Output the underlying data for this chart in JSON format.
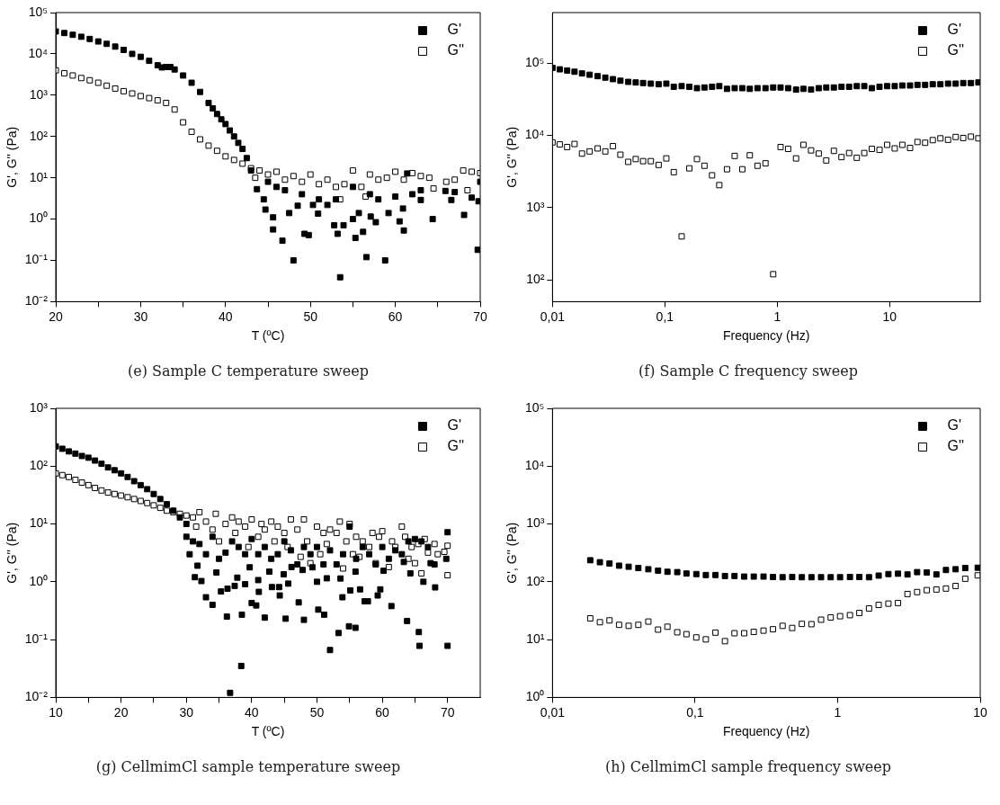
{
  "chart_data": [
    {
      "type": "scatter",
      "title": "(e) Sample C temperature sweep",
      "xlabel": "T (ºC)",
      "ylabel": "G', G'' (Pa)",
      "log": "y",
      "legend": "top right",
      "marker": "square",
      "grid": false,
      "xlim": [
        20,
        70
      ],
      "xticks": [
        20,
        {
          "value": 25,
          "label": null
        },
        30,
        {
          "value": 35,
          "label": null
        },
        40,
        {
          "value": 45,
          "label": null
        },
        50,
        {
          "value": 55,
          "label": null
        },
        60,
        {
          "value": 65,
          "label": null
        },
        70
      ],
      "ylim": [
        0.01,
        100000
      ],
      "yticks": [
        {
          "value": 0.01,
          "label": "10⁻²"
        },
        {
          "value": 0.1,
          "label": "10⁻¹"
        },
        {
          "value": 1,
          "label": "10⁰"
        },
        {
          "value": 10,
          "label": "10¹"
        },
        {
          "value": 100,
          "label": "10²"
        },
        {
          "value": 1000,
          "label": "10³"
        },
        {
          "value": 10000,
          "label": "10⁴"
        },
        {
          "value": 100000,
          "label": "10⁵"
        }
      ],
      "series": [
        {
          "name": "G'",
          "color": "#000000",
          "x": [
            20,
            21,
            22,
            23,
            24,
            25,
            26,
            27,
            28,
            29,
            30,
            31,
            32,
            32.5,
            33,
            33.5,
            34,
            35,
            36,
            37,
            38,
            38.5,
            39,
            39.5,
            40,
            40.5,
            41,
            41.5,
            42,
            42.5,
            43,
            43.7,
            44.5,
            44.7,
            45,
            45.6,
            45.6,
            46,
            46.7,
            47,
            47.5,
            48,
            48.5,
            49,
            49.3,
            49.8,
            50.3,
            50.9,
            51,
            52,
            52.8,
            53,
            53.2,
            53.5,
            53.9,
            55,
            55,
            55.3,
            55.7,
            56.2,
            56.6,
            57,
            57.1,
            57.7,
            58,
            58.8,
            59.2,
            60,
            60.5,
            60.9,
            61,
            61.4,
            62,
            63,
            63,
            64.4,
            65.9,
            66.6,
            67,
            68.1,
            69,
            69.7,
            69.8,
            70
          ],
          "values": [
            35000,
            32000,
            29000,
            26000,
            23000,
            20000,
            17500,
            15000,
            12500,
            10000,
            8500,
            6800,
            5300,
            4700,
            4800,
            4800,
            4200,
            3000,
            2000,
            1200,
            650,
            480,
            350,
            260,
            200,
            140,
            100,
            70,
            50,
            30,
            15,
            5.3,
            3,
            1.7,
            8,
            0.56,
            1.1,
            6,
            0.3,
            5,
            1.4,
            0.1,
            2.1,
            4,
            0.44,
            0.41,
            2.2,
            1.35,
            3,
            2.2,
            0.71,
            3,
            0.44,
            0.039,
            0.71,
            1,
            6,
            0.35,
            1.4,
            0.49,
            0.12,
            4,
            1.15,
            0.84,
            3,
            0.1,
            1.4,
            3.5,
            0.88,
            1.8,
            0.53,
            12.7,
            4,
            2.9,
            5,
            1,
            4.8,
            2.9,
            4.5,
            1.26,
            3.3,
            0.18,
            2.7,
            8
          ]
        },
        {
          "name": "G''",
          "color": "#ffffff",
          "x": [
            20,
            21,
            22,
            23,
            24,
            25,
            26,
            27,
            28,
            29,
            30,
            31,
            32,
            33,
            34,
            35,
            36,
            37,
            38,
            39,
            40,
            41,
            42,
            43,
            43.5,
            44,
            45,
            46,
            47,
            48,
            49,
            50,
            51,
            52,
            53,
            53.5,
            54,
            55,
            56,
            56.5,
            57,
            58,
            59,
            60,
            61,
            62,
            63,
            64,
            64.5,
            66,
            67,
            68,
            68.5,
            69,
            70
          ],
          "values": [
            4000,
            3400,
            3000,
            2600,
            2300,
            2000,
            1700,
            1450,
            1250,
            1100,
            950,
            850,
            750,
            650,
            450,
            220,
            130,
            85,
            60,
            45,
            33,
            27,
            22,
            17,
            10,
            15,
            12,
            14,
            9,
            11,
            8,
            12,
            7,
            9,
            6,
            3,
            7,
            15,
            6,
            3.5,
            12,
            9,
            10,
            14,
            9,
            13,
            11,
            10,
            5.5,
            8,
            9,
            15,
            5,
            14,
            13
          ]
        }
      ]
    },
    {
      "type": "scatter",
      "title": "(f) Sample C frequency sweep",
      "xlabel": "Frequency (Hz)",
      "ylabel": "G', G'' (Pa)",
      "log": "xy",
      "legend": "top right",
      "marker": "square",
      "grid": false,
      "xlim": [
        0.01,
        64
      ],
      "xticks": [
        {
          "value": 0.01,
          "label": "0,01"
        },
        {
          "value": 0.1,
          "label": "0,1"
        },
        1,
        10
      ],
      "ylim": [
        50,
        500000
      ],
      "yticks": [
        {
          "value": 100,
          "label": "10²"
        },
        {
          "value": 1000,
          "label": "10³"
        },
        {
          "value": 10000,
          "label": "10⁴"
        },
        {
          "value": 100000,
          "label": "10⁵"
        }
      ],
      "series": [
        {
          "name": "G'",
          "color": "#000000",
          "x": [
            0.01,
            0.0116,
            0.0135,
            0.0157,
            0.0183,
            0.0214,
            0.0252,
            0.0295,
            0.0345,
            0.0402,
            0.0472,
            0.055,
            0.064,
            0.075,
            0.088,
            0.103,
            0.12,
            0.141,
            0.165,
            0.193,
            0.225,
            0.263,
            0.305,
            0.357,
            0.418,
            0.489,
            0.57,
            0.667,
            0.786,
            0.92,
            1.07,
            1.25,
            1.47,
            1.71,
            2.0,
            2.34,
            2.73,
            3.19,
            3.73,
            4.36,
            5.1,
            5.95,
            6.95,
            8.13,
            9.5,
            11.1,
            12.97,
            15.2,
            17.7,
            20.7,
            24.2,
            28.3,
            33.1,
            38.7,
            45.2,
            52.9,
            61.6
          ],
          "values": [
            86000,
            82000,
            79000,
            76000,
            72000,
            69000,
            66000,
            63000,
            60000,
            57000,
            55000,
            54000,
            53000,
            52000,
            51000,
            52000,
            47000,
            48000,
            47000,
            45000,
            46000,
            47000,
            48000,
            44000,
            45000,
            45000,
            44000,
            45000,
            45000,
            46000,
            46000,
            45000,
            43000,
            44000,
            43000,
            45000,
            46000,
            46000,
            47000,
            47000,
            48000,
            48000,
            45000,
            47000,
            48000,
            48000,
            49000,
            49000,
            50000,
            50000,
            51000,
            51000,
            52000,
            52000,
            53000,
            53000,
            54000
          ]
        },
        {
          "name": "G''",
          "color": "#ffffff",
          "x": [
            0.01,
            0.0116,
            0.0135,
            0.0157,
            0.0183,
            0.0214,
            0.0252,
            0.0295,
            0.0345,
            0.0402,
            0.0472,
            0.055,
            0.064,
            0.075,
            0.088,
            0.103,
            0.12,
            0.141,
            0.165,
            0.193,
            0.225,
            0.263,
            0.305,
            0.357,
            0.418,
            0.489,
            0.57,
            0.667,
            0.786,
            0.92,
            1.07,
            1.25,
            1.47,
            1.71,
            2.0,
            2.34,
            2.73,
            3.19,
            3.73,
            4.36,
            5.1,
            5.95,
            6.95,
            8.13,
            9.5,
            11.1,
            12.97,
            15.2,
            17.7,
            20.7,
            24.2,
            28.3,
            33.1,
            38.7,
            45.2,
            52.9,
            61.6
          ],
          "values": [
            8000,
            7500,
            6900,
            7600,
            5600,
            6000,
            6600,
            6000,
            7100,
            5400,
            4300,
            4700,
            4400,
            4400,
            3900,
            4800,
            3100,
            400,
            3500,
            4700,
            3800,
            2800,
            2050,
            3400,
            5200,
            3400,
            5300,
            3800,
            4100,
            120,
            6900,
            6500,
            4800,
            7400,
            6200,
            5600,
            4500,
            6100,
            5000,
            5700,
            4900,
            5700,
            6500,
            6300,
            7400,
            6600,
            7400,
            6700,
            8100,
            7900,
            8600,
            9100,
            8700,
            9500,
            9200,
            9600,
            9100
          ]
        }
      ]
    },
    {
      "type": "scatter",
      "title": "(g) CellmimCl sample temperature sweep",
      "xlabel": "T (ºC)",
      "ylabel": "G', G'' (Pa)",
      "log": "y",
      "legend": "top right",
      "marker": "square",
      "grid": false,
      "xlim": [
        10,
        75
      ],
      "xticks": [
        10,
        {
          "value": 15,
          "label": null
        },
        20,
        {
          "value": 25,
          "label": null
        },
        30,
        {
          "value": 35,
          "label": null
        },
        40,
        {
          "value": 45,
          "label": null
        },
        50,
        {
          "value": 55,
          "label": null
        },
        60,
        {
          "value": 65,
          "label": null
        },
        70
      ],
      "ylim": [
        0.01,
        1000
      ],
      "yticks": [
        {
          "value": 0.01,
          "label": "10⁻²"
        },
        {
          "value": 0.1,
          "label": "10⁻¹"
        },
        {
          "value": 1,
          "label": "10⁰"
        },
        {
          "value": 10,
          "label": "10¹"
        },
        {
          "value": 100,
          "label": "10²"
        },
        {
          "value": 1000,
          "label": "10³"
        }
      ],
      "series": [
        {
          "name": "G'",
          "color": "#000000",
          "x": [
            10,
            11,
            12,
            13,
            14,
            15,
            16,
            17,
            18,
            19,
            20,
            21,
            22,
            23,
            24,
            25,
            26,
            27,
            28,
            29,
            30,
            30.5,
            31.7,
            31.3,
            32.3,
            33,
            34,
            34.6,
            35.3,
            36.3,
            36.2,
            36.7,
            37.4,
            37.8,
            38.5,
            38.4,
            39,
            39.7,
            40,
            40.7,
            41,
            41.1,
            42,
            42.7,
            43.1,
            44.2,
            44.3,
            44.9,
            45.2,
            45.6,
            46.1,
            47.2,
            48,
            47.8,
            49.3,
            50,
            50.2,
            51.1,
            51.5,
            52,
            53.3,
            53.6,
            53.9,
            54.9,
            55.1,
            55.9,
            55.9,
            56.6,
            57.3,
            57.8,
            59.3,
            59.7,
            60.2,
            61.4,
            63.3,
            63.8,
            64.3,
            65.6,
            65.7,
            66.3,
            67.4,
            68.1,
            69.8,
            70,
            70,
            30,
            31,
            32,
            33,
            34,
            35,
            36,
            37,
            38,
            39,
            40,
            41,
            42,
            43,
            44,
            45,
            46,
            47,
            48,
            49,
            50,
            51,
            52,
            53,
            54,
            55,
            56,
            57,
            58,
            59,
            60,
            61,
            62,
            63,
            64,
            65,
            66,
            67,
            68
          ],
          "values": [
            220,
            200,
            180,
            165,
            150,
            140,
            125,
            110,
            95,
            85,
            75,
            65,
            55,
            47,
            40,
            33,
            27,
            22,
            17,
            13,
            10,
            3,
            1.9,
            1.2,
            1.03,
            0.54,
            0.4,
            1.45,
            0.68,
            0.76,
            0.25,
            0.012,
            0.85,
            1.18,
            0.27,
            0.035,
            0.91,
            1.78,
            0.43,
            0.39,
            1.07,
            0.67,
            0.24,
            1.5,
            0.81,
            0.81,
            0.58,
            1.35,
            0.23,
            0.93,
            1.8,
            0.44,
            0.22,
            1.6,
            1.78,
            1,
            0.33,
            0.27,
            1.15,
            0.066,
            0.13,
            1.14,
            0.54,
            0.17,
            0.71,
            0.16,
            1.5,
            0.74,
            0.46,
            0.46,
            0.58,
            0.74,
            1.55,
            0.38,
            2.2,
            0.21,
            1.4,
            0.135,
            0.078,
            1,
            2.1,
            0.8,
            2.5,
            7.2,
            0.078,
            6,
            5,
            4.5,
            3,
            6,
            2.5,
            3.2,
            5,
            4,
            3,
            5.5,
            3,
            4,
            2.5,
            3,
            5,
            3.5,
            2,
            4,
            3,
            4,
            2,
            3.5,
            2,
            3,
            9,
            2.5,
            4,
            3,
            2,
            4,
            2.5,
            3.5,
            3,
            5,
            5.5,
            5,
            4,
            2
          ]
        },
        {
          "name": "G''",
          "color": "#ffffff",
          "x": [
            10,
            11,
            12,
            13,
            14,
            15,
            16,
            17,
            18,
            19,
            20,
            21,
            22,
            23,
            24,
            25,
            26,
            27,
            28,
            29,
            30,
            31,
            31.5,
            32,
            33,
            34,
            34.5,
            35,
            36,
            37,
            37.5,
            38,
            39,
            39.5,
            40,
            41,
            41.5,
            42,
            43,
            43.5,
            44,
            45,
            45.5,
            46,
            47,
            47.5,
            48,
            48.5,
            49,
            50,
            50.5,
            51,
            51.5,
            52,
            53,
            53.5,
            54,
            54.5,
            55,
            55.5,
            56,
            56.5,
            57,
            58,
            58.5,
            59,
            59.5,
            60,
            61,
            61.5,
            62,
            63,
            63.5,
            64,
            64.5,
            65,
            65.5,
            66,
            66.5,
            67,
            68,
            68.5,
            69.5,
            70,
            70
          ],
          "values": [
            75,
            70,
            65,
            58,
            52,
            47,
            42,
            38,
            35,
            33,
            31,
            29,
            27,
            25,
            23,
            21,
            19,
            17,
            16,
            15,
            14,
            13,
            9,
            16,
            11,
            8,
            15,
            5,
            10,
            13,
            7,
            11,
            9,
            4,
            12,
            6,
            10,
            8,
            11,
            5,
            9,
            7,
            4,
            12,
            8,
            2.7,
            12,
            5,
            2.1,
            9,
            3,
            7,
            4.5,
            8,
            7,
            11,
            1.7,
            5,
            10,
            3,
            6,
            2.7,
            5,
            4,
            7,
            2.1,
            6,
            7.5,
            1.8,
            5,
            4,
            9,
            6,
            2.5,
            4,
            2.1,
            4.5,
            1.4,
            5.5,
            3.2,
            4.5,
            3,
            3.3,
            4.2,
            1.3
          ]
        }
      ]
    },
    {
      "type": "scatter",
      "title": "(h) CellmimCl sample frequency sweep",
      "xlabel": "Frequency (Hz)",
      "ylabel": "G', G'' (Pa)",
      "log": "xy",
      "legend": "top right",
      "marker": "square",
      "grid": false,
      "xlim": [
        0.01,
        10
      ],
      "xticks": [
        {
          "value": 0.01,
          "label": "0,01"
        },
        {
          "value": 0.1,
          "label": "0,1"
        },
        1,
        10
      ],
      "ylim": [
        1,
        100000
      ],
      "yticks": [
        {
          "value": 1,
          "label": "10⁰"
        },
        {
          "value": 10,
          "label": "10¹"
        },
        {
          "value": 100,
          "label": "10²"
        },
        {
          "value": 1000,
          "label": "10³"
        },
        {
          "value": 10000,
          "label": "10⁴"
        },
        {
          "value": 100000,
          "label": "10⁵"
        }
      ],
      "series": [
        {
          "name": "G'",
          "color": "#000000",
          "x": [
            0.0184,
            0.0215,
            0.0251,
            0.0293,
            0.0342,
            0.04,
            0.047,
            0.055,
            0.064,
            0.075,
            0.087,
            0.102,
            0.119,
            0.139,
            0.162,
            0.189,
            0.221,
            0.258,
            0.302,
            0.352,
            0.411,
            0.48,
            0.561,
            0.655,
            0.765,
            0.894,
            1.04,
            1.22,
            1.42,
            1.66,
            1.94,
            2.27,
            2.65,
            3.09,
            3.61,
            4.22,
            4.93,
            5.75,
            6.72,
            7.85,
            9.6
          ],
          "values": [
            236,
            218,
            207,
            190,
            182,
            173,
            165,
            156,
            149,
            147,
            139,
            136,
            131,
            131,
            126,
            126,
            123,
            123,
            123,
            121,
            120,
            121,
            120,
            120,
            120,
            120,
            120,
            121,
            121,
            120,
            128,
            136,
            138,
            134,
            147,
            145,
            134,
            160,
            165,
            173,
            175
          ]
        },
        {
          "name": "G''",
          "color": "#ffffff",
          "x": [
            0.0184,
            0.0215,
            0.0251,
            0.0293,
            0.0342,
            0.04,
            0.047,
            0.055,
            0.064,
            0.075,
            0.087,
            0.102,
            0.119,
            0.139,
            0.162,
            0.189,
            0.221,
            0.258,
            0.302,
            0.352,
            0.411,
            0.48,
            0.561,
            0.655,
            0.765,
            0.894,
            1.04,
            1.22,
            1.42,
            1.66,
            1.94,
            2.27,
            2.65,
            3.09,
            3.61,
            4.22,
            4.93,
            5.75,
            6.72,
            7.85,
            9.6
          ],
          "values": [
            23.3,
            20,
            21.5,
            18,
            17.3,
            18,
            20.5,
            14.9,
            16.7,
            13.4,
            12.4,
            10.9,
            10.1,
            13.2,
            9.4,
            12.9,
            12.9,
            13.6,
            14.3,
            15.1,
            17.3,
            15.9,
            18.7,
            18.5,
            22.1,
            24.2,
            25.4,
            26.5,
            28.9,
            34.6,
            39.8,
            41.9,
            43,
            61.5,
            66.4,
            71.7,
            73.6,
            76.4,
            84.7,
            113,
            129
          ]
        }
      ]
    }
  ]
}
